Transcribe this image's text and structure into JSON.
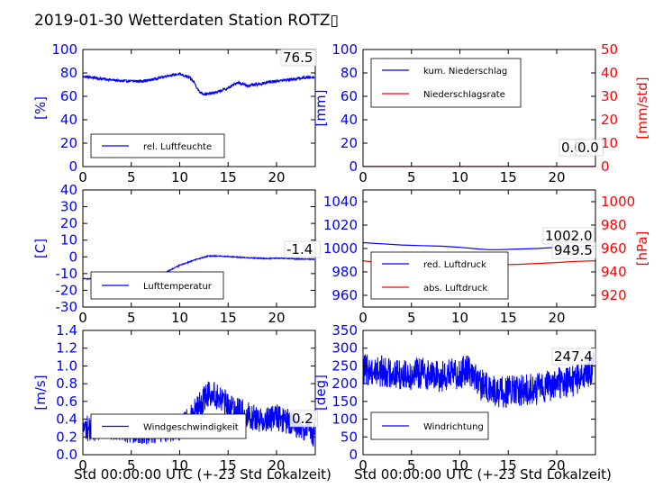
{
  "title": "2019-01-30 Wetterdaten Station ROTZ▯",
  "colors": {
    "left_axis": "#0000ff",
    "right_axis": "#ff0000",
    "series_blue": "#0000ff",
    "series_red": "#ff0000",
    "frame": "#000000"
  },
  "chart_data": [
    {
      "type": "line",
      "panel": "top-left",
      "ylabel": "[%]",
      "xlim": [
        0,
        24
      ],
      "ylim": [
        0,
        100
      ],
      "xticks": [
        0,
        5,
        10,
        15,
        20
      ],
      "yticks": [
        0,
        20,
        40,
        60,
        80,
        100
      ],
      "legend_location": "lower-left",
      "last_value_label": "76.5",
      "series": [
        {
          "name": "rel. Luftfeuchte",
          "color": "#0000ff",
          "noise": 1.2,
          "x": [
            0,
            1,
            2,
            3,
            4,
            5,
            6,
            7,
            8,
            9,
            10,
            11,
            11.5,
            12,
            12.5,
            13,
            14,
            15,
            16,
            17,
            18,
            19,
            20,
            21,
            22,
            23,
            23.9
          ],
          "y": [
            77,
            76,
            75,
            74,
            73,
            73,
            73,
            74,
            76,
            78,
            79,
            76,
            72,
            64,
            62,
            62,
            64,
            67,
            72,
            69,
            70,
            72,
            73,
            74,
            75,
            76,
            76.5
          ]
        }
      ]
    },
    {
      "type": "line",
      "panel": "top-right",
      "ylabel": "[mm]",
      "ylabel_right": "[mm/std]",
      "xlim": [
        0,
        24
      ],
      "ylim": [
        0,
        100
      ],
      "ylim_right": [
        0,
        50
      ],
      "xticks": [
        0,
        5,
        10,
        15,
        20
      ],
      "yticks": [
        0,
        20,
        40,
        60,
        80,
        100
      ],
      "yticks_right": [
        0,
        10,
        20,
        30,
        40,
        50
      ],
      "legend_location": "upper-left",
      "last_value_labels": [
        "0.0",
        "0.0"
      ],
      "series": [
        {
          "name": "kum. Niederschlag",
          "axis": "left",
          "color": "#0000ff",
          "x": [
            0,
            24
          ],
          "y": [
            0,
            0
          ]
        },
        {
          "name": "Niederschlagsrate",
          "axis": "right",
          "color": "#ff0000",
          "x": [
            0,
            24
          ],
          "y": [
            0,
            0
          ]
        }
      ]
    },
    {
      "type": "line",
      "panel": "middle-left",
      "ylabel": "[C]",
      "xlim": [
        0,
        24
      ],
      "ylim": [
        -30,
        40
      ],
      "xticks": [
        0,
        5,
        10,
        15,
        20
      ],
      "yticks": [
        -30,
        -20,
        -10,
        0,
        10,
        20,
        30,
        40
      ],
      "legend_location": "lower-left",
      "last_value_label": "-1.4",
      "series": [
        {
          "name": "Lufttemperatur",
          "color": "#0000ff",
          "noise": 0.3,
          "x": [
            0,
            2,
            4,
            6,
            7,
            8,
            9,
            10,
            11,
            12,
            13,
            14,
            15,
            16,
            17,
            18,
            19,
            20,
            21,
            22,
            23,
            23.9
          ],
          "y": [
            -13,
            -13.5,
            -14,
            -15,
            -14.5,
            -11,
            -8,
            -5,
            -3,
            -1,
            0.5,
            0.5,
            0.2,
            -0.2,
            -0.5,
            -0.8,
            -1.0,
            -0.8,
            -1.0,
            -1.2,
            -1.3,
            -1.4
          ]
        }
      ]
    },
    {
      "type": "line",
      "panel": "middle-right",
      "ylabel_right": "[hPa]",
      "xlim": [
        0,
        24
      ],
      "ylim": [
        950,
        1050
      ],
      "ylim_right": [
        910,
        1010
      ],
      "xticks": [
        0,
        5,
        10,
        15,
        20
      ],
      "yticks": [
        960,
        980,
        1000,
        1020,
        1040
      ],
      "yticks_right": [
        920,
        940,
        960,
        980,
        1000
      ],
      "legend_location": "lower-left",
      "last_value_labels": [
        "1002.0",
        "949.5"
      ],
      "series": [
        {
          "name": "red. Luftdruck",
          "axis": "left",
          "color": "#0000ff",
          "x": [
            0,
            2,
            4,
            6,
            8,
            10,
            12,
            13,
            14,
            16,
            18,
            20,
            22,
            24
          ],
          "y": [
            1005,
            1004,
            1003,
            1002.5,
            1002,
            1001,
            999.5,
            999,
            999,
            999.5,
            1000,
            1001,
            1001.5,
            1002
          ]
        },
        {
          "name": "abs. Luftdruck",
          "axis": "right",
          "color": "#ff0000",
          "x": [
            0,
            2,
            4,
            6,
            8,
            10,
            12,
            14,
            16,
            18,
            20,
            22,
            24
          ],
          "y": [
            949.5,
            947.5,
            946,
            945.5,
            945.3,
            945.3,
            945.5,
            946,
            946.5,
            947.2,
            948,
            949,
            949.5
          ]
        }
      ]
    },
    {
      "type": "line",
      "panel": "bottom-left",
      "ylabel": "[m/s]",
      "xlabel": "Std 00:00:00 UTC (+-23 Std Lokalzeit)",
      "xlim": [
        0,
        24
      ],
      "ylim": [
        0,
        1.4
      ],
      "xticks": [
        0,
        5,
        10,
        15,
        20
      ],
      "yticks": [
        0.0,
        0.2,
        0.4,
        0.6,
        0.8,
        1.0,
        1.2,
        1.4
      ],
      "legend_location": "lower-left",
      "last_value_label": "0.2",
      "series": [
        {
          "name": "Windgeschwindigkeit",
          "color": "#0000ff",
          "noise": 0.15,
          "x": [
            0,
            2,
            4,
            6,
            8,
            10,
            11,
            12,
            13,
            14,
            15,
            16,
            17,
            18,
            19,
            20,
            21,
            22,
            23,
            23.9
          ],
          "y": [
            0.3,
            0.3,
            0.28,
            0.27,
            0.28,
            0.3,
            0.4,
            0.55,
            0.7,
            0.65,
            0.55,
            0.5,
            0.45,
            0.4,
            0.4,
            0.42,
            0.38,
            0.33,
            0.3,
            0.2
          ]
        }
      ]
    },
    {
      "type": "line",
      "panel": "bottom-right",
      "ylabel": "[deg]",
      "xlabel": "Std 00:00:00 UTC (+-23 Std Lokalzeit)",
      "xlim": [
        0,
        24
      ],
      "ylim": [
        0,
        350
      ],
      "xticks": [
        0,
        5,
        10,
        15,
        20
      ],
      "yticks": [
        0,
        50,
        100,
        150,
        200,
        250,
        300,
        350
      ],
      "legend_location": "lower-left",
      "last_value_label": "247.4",
      "series": [
        {
          "name": "Windrichtung",
          "color": "#0000ff",
          "noise": 45,
          "x": [
            0,
            2,
            4,
            6,
            8,
            10,
            11,
            12,
            13,
            14,
            16,
            18,
            20,
            22,
            23.9
          ],
          "y": [
            240,
            235,
            225,
            230,
            220,
            230,
            240,
            200,
            185,
            175,
            180,
            185,
            200,
            210,
            247.4
          ]
        }
      ]
    }
  ]
}
